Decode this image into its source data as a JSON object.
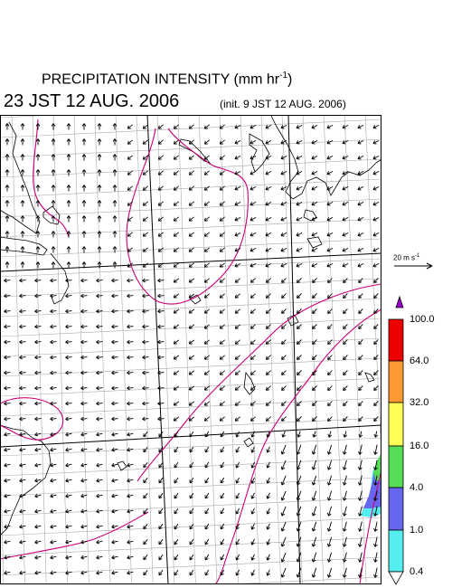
{
  "header": {
    "title_main": "PRECIPITATION INTENSITY (mm hr",
    "title_unit_exp": "-1",
    "title_close": ")",
    "valid_time": "23 JST 12 AUG. 2006",
    "init_time": "(init. 9 JST 12 AUG. 2006)"
  },
  "reference_vector": {
    "label": "20 m s",
    "exp": "-1",
    "speed_ms": 20
  },
  "colorbar": {
    "labels": [
      "100.0",
      "64.0",
      "32.0",
      "16.0",
      "4.0",
      "1.0",
      "0.4"
    ],
    "colors": [
      "#9900cc",
      "#ee0000",
      "#ff9933",
      "#ffff55",
      "#55dd55",
      "#6666ee",
      "#55eeee",
      "#ffffff"
    ]
  },
  "map": {
    "frame_color": "#000000",
    "grid_color": "#aaaaaa",
    "contour_color": "#cc0077",
    "precip_colors": [
      "#55eeee",
      "#6666ee",
      "#55dd55"
    ]
  }
}
